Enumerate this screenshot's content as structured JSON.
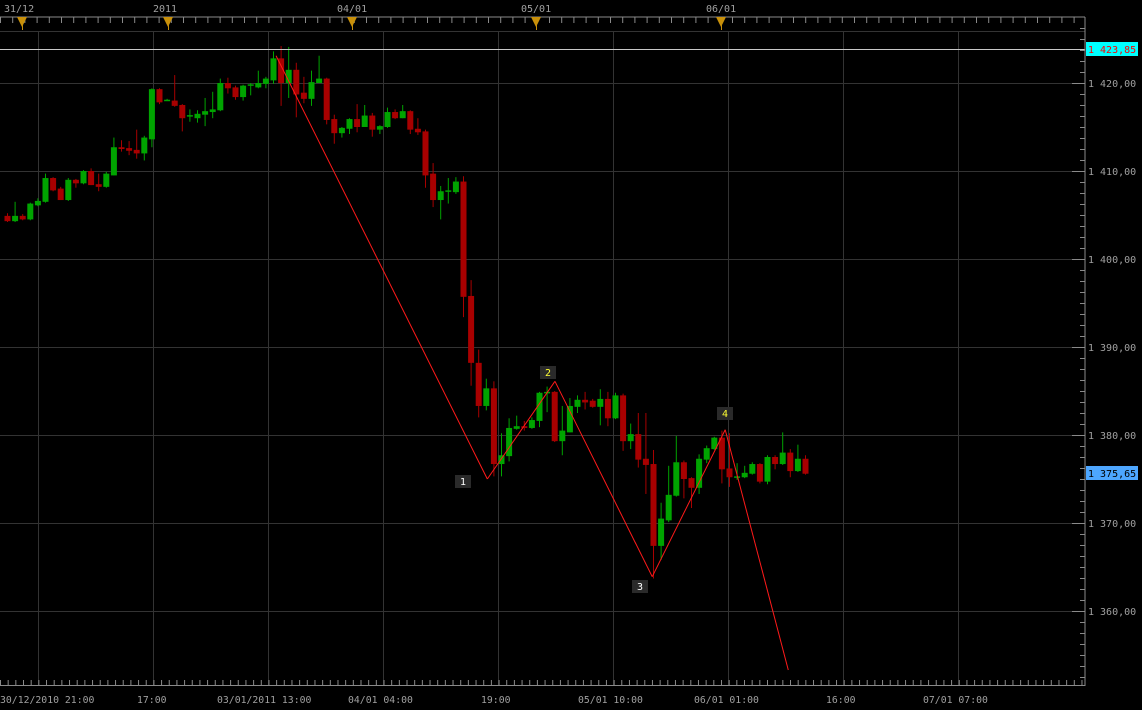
{
  "colors": {
    "up": "#00a400",
    "down": "#a80000",
    "grid": "#333333",
    "axis": "#8a8a8a",
    "wave": "#ff1a1a",
    "marker": "#c8900a",
    "ref_line_label_bg": "#00ffff",
    "ref_line_label_text": "#ff0000",
    "last_price_bg": "#4da6ff",
    "wave_label_text": "#ffff33"
  },
  "top_timeline": {
    "labels": [
      "31/12",
      "2011",
      "04/01",
      "05/01",
      "06/01"
    ],
    "marker_icon": "triangle-down-icon"
  },
  "chart_data": {
    "type": "candlestick",
    "title": "",
    "x_axis": {
      "tick_labels": [
        "30/12/2010 21:00",
        "17:00",
        "03/01/2011 13:00",
        "04/01 04:00",
        "19:00",
        "05/01 10:00",
        "06/01 01:00",
        "16:00",
        "07/01 07:00"
      ]
    },
    "y_axis": {
      "range": [
        1352,
        1427
      ],
      "tick_values": [
        1420,
        1410,
        1400,
        1390,
        1380,
        1370,
        1360
      ],
      "tick_labels": [
        "1 420,00",
        "1 410,00",
        "1 400,00",
        "1 390,00",
        "1 380,00",
        "1 370,00",
        "1 360,00"
      ],
      "position": "right"
    },
    "grid": true,
    "ohlc_order": [
      "open",
      "high",
      "low",
      "close"
    ],
    "candles": [
      [
        1404.9,
        1405.2,
        1404.2,
        1404.3
      ],
      [
        1404.3,
        1406.5,
        1404.2,
        1404.9
      ],
      [
        1404.9,
        1405.1,
        1404.4,
        1404.5
      ],
      [
        1404.5,
        1406.4,
        1404.4,
        1406.3
      ],
      [
        1406.1,
        1406.9,
        1406.0,
        1406.6
      ],
      [
        1406.5,
        1409.7,
        1406.4,
        1409.2
      ],
      [
        1409.2,
        1409.3,
        1407.7,
        1407.8
      ],
      [
        1408.0,
        1408.2,
        1406.7,
        1406.7
      ],
      [
        1406.7,
        1409.2,
        1406.6,
        1409.0
      ],
      [
        1409.0,
        1409.1,
        1408.1,
        1408.6
      ],
      [
        1408.6,
        1410.1,
        1408.5,
        1410.0
      ],
      [
        1410.0,
        1410.3,
        1408.4,
        1408.4
      ],
      [
        1408.5,
        1409.7,
        1407.7,
        1408.2
      ],
      [
        1408.2,
        1409.9,
        1408.1,
        1409.7
      ],
      [
        1409.5,
        1413.8,
        1409.5,
        1412.7
      ],
      [
        1412.7,
        1413.5,
        1412.2,
        1412.5
      ],
      [
        1412.6,
        1413.4,
        1411.8,
        1412.3
      ],
      [
        1412.4,
        1414.7,
        1411.4,
        1412.0
      ],
      [
        1412.0,
        1414.0,
        1411.2,
        1413.8
      ],
      [
        1413.6,
        1419.4,
        1412.7,
        1419.3
      ],
      [
        1419.3,
        1419.4,
        1417.6,
        1417.8
      ],
      [
        1418.0,
        1418.2,
        1418.0,
        1418.1
      ],
      [
        1418.0,
        1420.9,
        1417.3,
        1417.4
      ],
      [
        1417.5,
        1417.6,
        1414.5,
        1416.0
      ],
      [
        1416.3,
        1417.0,
        1415.6,
        1416.35
      ],
      [
        1416.0,
        1416.9,
        1415.5,
        1416.5
      ],
      [
        1416.4,
        1418.3,
        1415.1,
        1416.8
      ],
      [
        1416.7,
        1419.0,
        1416.0,
        1417.0
      ],
      [
        1416.9,
        1420.5,
        1416.8,
        1420.0
      ],
      [
        1420.0,
        1420.6,
        1418.8,
        1419.4
      ],
      [
        1419.5,
        1419.7,
        1418.1,
        1418.4
      ],
      [
        1418.4,
        1419.8,
        1418.0,
        1419.7
      ],
      [
        1419.8,
        1420.0,
        1418.6,
        1419.85
      ],
      [
        1419.5,
        1421.4,
        1419.4,
        1420.0
      ],
      [
        1419.9,
        1420.7,
        1419.4,
        1420.5
      ],
      [
        1420.3,
        1423.6,
        1419.9,
        1422.8
      ],
      [
        1422.8,
        1424.2,
        1417.4,
        1420.0
      ],
      [
        1420.0,
        1424.1,
        1418.3,
        1421.5
      ],
      [
        1421.5,
        1422.3,
        1416.1,
        1418.7
      ],
      [
        1418.9,
        1420.7,
        1417.7,
        1418.2
      ],
      [
        1418.2,
        1421.4,
        1417.4,
        1420.1
      ],
      [
        1420.0,
        1423.1,
        1420.0,
        1420.5
      ],
      [
        1420.5,
        1420.6,
        1415.3,
        1415.8
      ],
      [
        1415.9,
        1416.4,
        1413.1,
        1414.3
      ],
      [
        1414.3,
        1415.0,
        1413.8,
        1414.9
      ],
      [
        1414.8,
        1416.0,
        1414.2,
        1415.9
      ],
      [
        1415.9,
        1417.6,
        1414.4,
        1415.0
      ],
      [
        1415.0,
        1417.5,
        1415.0,
        1416.3
      ],
      [
        1416.3,
        1416.6,
        1413.9,
        1414.7
      ],
      [
        1414.7,
        1415.2,
        1414.2,
        1415.1
      ],
      [
        1415.0,
        1417.2,
        1414.9,
        1416.7
      ],
      [
        1416.7,
        1417.0,
        1415.9,
        1416.0
      ],
      [
        1416.0,
        1417.5,
        1416.0,
        1416.8
      ],
      [
        1416.8,
        1416.9,
        1414.2,
        1414.7
      ],
      [
        1414.8,
        1416.0,
        1414.1,
        1414.4
      ],
      [
        1414.5,
        1414.7,
        1408.1,
        1409.5
      ],
      [
        1409.7,
        1410.9,
        1405.9,
        1406.7
      ],
      [
        1406.7,
        1408.3,
        1404.5,
        1407.7
      ],
      [
        1407.75,
        1409.2,
        1406.3,
        1407.8
      ],
      [
        1407.6,
        1409.3,
        1407.4,
        1408.8
      ],
      [
        1408.8,
        1409.4,
        1393.4,
        1395.7
      ],
      [
        1395.8,
        1397.6,
        1385.6,
        1388.2
      ],
      [
        1388.2,
        1389.7,
        1382.0,
        1383.3
      ],
      [
        1383.3,
        1386.4,
        1382.8,
        1385.3
      ],
      [
        1385.3,
        1386.1,
        1375.3,
        1376.7
      ],
      [
        1376.7,
        1380.2,
        1375.3,
        1377.7
      ],
      [
        1377.6,
        1381.9,
        1377.0,
        1380.8
      ],
      [
        1380.7,
        1382.2,
        1380.6,
        1381.0
      ],
      [
        1381.0,
        1381.6,
        1380.5,
        1380.8
      ],
      [
        1380.8,
        1382.0,
        1380.7,
        1381.7
      ],
      [
        1381.6,
        1384.9,
        1380.9,
        1384.8
      ],
      [
        1384.8,
        1385.5,
        1382.6,
        1384.9
      ],
      [
        1384.9,
        1385.0,
        1379.2,
        1379.3
      ],
      [
        1379.3,
        1383.3,
        1377.7,
        1380.5
      ],
      [
        1380.3,
        1384.2,
        1380.3,
        1383.3
      ],
      [
        1383.2,
        1384.5,
        1382.5,
        1384.0
      ],
      [
        1384.0,
        1384.9,
        1382.9,
        1383.7
      ],
      [
        1383.9,
        1384.1,
        1383.1,
        1383.2
      ],
      [
        1383.2,
        1385.2,
        1381.1,
        1384.1
      ],
      [
        1384.1,
        1384.9,
        1381.0,
        1381.9
      ],
      [
        1381.9,
        1384.8,
        1381.8,
        1384.5
      ],
      [
        1384.5,
        1384.7,
        1378.2,
        1379.3
      ],
      [
        1379.3,
        1381.3,
        1378.4,
        1380.1
      ],
      [
        1380.1,
        1382.5,
        1376.3,
        1377.2
      ],
      [
        1377.3,
        1382.5,
        1373.3,
        1376.6
      ],
      [
        1376.7,
        1378.3,
        1363.7,
        1367.4
      ],
      [
        1367.4,
        1372.3,
        1365.8,
        1370.5
      ],
      [
        1370.3,
        1376.5,
        1370.1,
        1373.2
      ],
      [
        1373.1,
        1379.9,
        1373.0,
        1376.9
      ],
      [
        1376.9,
        1377.1,
        1372.8,
        1375.0
      ],
      [
        1375.1,
        1375.2,
        1371.7,
        1374.0
      ],
      [
        1374.0,
        1377.8,
        1373.3,
        1377.3
      ],
      [
        1377.2,
        1378.8,
        1376.8,
        1378.5
      ],
      [
        1378.4,
        1379.8,
        1378.3,
        1379.7
      ],
      [
        1379.7,
        1380.5,
        1374.5,
        1376.1
      ],
      [
        1376.2,
        1380.2,
        1374.1,
        1375.2
      ],
      [
        1375.2,
        1376.8,
        1374.9,
        1375.3
      ],
      [
        1375.2,
        1376.5,
        1375.1,
        1375.7
      ],
      [
        1375.6,
        1376.9,
        1375.5,
        1376.7
      ],
      [
        1376.7,
        1376.8,
        1374.5,
        1374.7
      ],
      [
        1374.7,
        1377.7,
        1374.4,
        1377.5
      ],
      [
        1377.5,
        1377.7,
        1376.1,
        1376.7
      ],
      [
        1376.7,
        1380.3,
        1376.6,
        1378.0
      ],
      [
        1378.0,
        1378.4,
        1375.2,
        1375.9
      ],
      [
        1375.9,
        1378.9,
        1375.8,
        1377.3
      ],
      [
        1377.3,
        1377.7,
        1375.5,
        1375.6
      ]
    ],
    "wave": {
      "points": [
        {
          "bar": 35.4,
          "price": 1423.1
        },
        {
          "bar": 63.2,
          "price": 1375.0
        },
        {
          "bar": 72.1,
          "price": 1386.1
        },
        {
          "bar": 84.9,
          "price": 1363.9
        },
        {
          "bar": 94.5,
          "price": 1380.6
        },
        {
          "bar": 102.8,
          "price": 1353.3
        }
      ],
      "labels": [
        "1",
        "2",
        "3",
        "4"
      ]
    },
    "reference_line": {
      "price": 1423.85,
      "label": "1 423,85"
    },
    "last_price": {
      "price": 1375.65,
      "label": "1 375,65"
    }
  }
}
